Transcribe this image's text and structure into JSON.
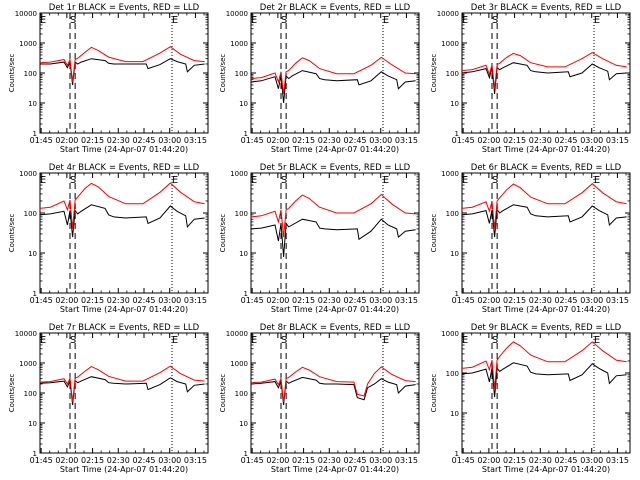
{
  "chart_data": {
    "type": "line",
    "xlabel": "Start Time (24-Apr-07 01:44:20)",
    "ylabel": "Counts/sec",
    "x_ticks": [
      "01:45",
      "02:00",
      "02:15",
      "02:30",
      "02:45",
      "03:00",
      "03:15"
    ],
    "x_tick_minutes": [
      0.67,
      15.67,
      30.67,
      45.67,
      60.67,
      75.67,
      90.67
    ],
    "x_range_minutes": [
      0,
      98
    ],
    "y_scale": "log",
    "y_ticks": [
      "1",
      "10",
      "100",
      "1000",
      "10000"
    ],
    "y_tick_values": [
      1,
      10,
      100,
      1000,
      10000
    ],
    "markers": [
      {
        "label": "E",
        "minute": 0,
        "style": "dotted"
      },
      {
        "label": "S",
        "minute": 17.5,
        "style": "dashed"
      },
      {
        "label": "",
        "minute": 20.5,
        "style": "dashed"
      },
      {
        "label": "E",
        "minute": 77,
        "style": "dotted"
      }
    ],
    "series_colors": {
      "events": "#000000",
      "lld": "#ff0000"
    },
    "panels": [
      {
        "title": "Det 1r BLACK = Events, RED = LLD",
        "ylim": [
          1,
          10000
        ],
        "series": [
          {
            "name": "Events",
            "x": [
              0,
              6,
              14,
              16,
              17.5,
              19,
              20.5,
              22,
              24,
              30,
              38,
              40,
              43,
              50,
              62,
              63,
              70,
              76,
              80,
              85,
              86,
              90,
              96
            ],
            "y": [
              200,
              200,
              230,
              150,
              230,
              40,
              230,
              200,
              230,
              300,
              260,
              210,
              200,
              200,
              200,
              140,
              190,
              300,
              240,
              200,
              110,
              180,
              200
            ]
          },
          {
            "name": "LLD",
            "x": [
              0,
              6,
              14,
              16,
              17.5,
              19,
              20.5,
              22,
              26,
              30,
              34,
              40,
              50,
              60,
              70,
              76,
              82,
              90,
              96
            ],
            "y": [
              220,
              230,
              280,
              180,
              280,
              50,
              280,
              310,
              480,
              720,
              560,
              340,
              240,
              240,
              460,
              750,
              420,
              260,
              240
            ]
          }
        ]
      },
      {
        "title": "Det 2r BLACK = Events, RED = LLD",
        "ylim": [
          1,
          10000
        ],
        "series": [
          {
            "name": "Events",
            "x": [
              0,
              6,
              14,
              16,
              17.5,
              19,
              20.5,
              22,
              24,
              30,
              38,
              40,
              43,
              50,
              62,
              63,
              70,
              76,
              80,
              85,
              86,
              90,
              96
            ],
            "y": [
              50,
              55,
              75,
              30,
              80,
              10,
              80,
              65,
              80,
              120,
              95,
              65,
              60,
              55,
              60,
              40,
              55,
              110,
              80,
              60,
              30,
              50,
              55
            ]
          },
          {
            "name": "LLD",
            "x": [
              0,
              6,
              14,
              16,
              17.5,
              19,
              20.5,
              22,
              26,
              30,
              34,
              40,
              50,
              60,
              70,
              76,
              82,
              90,
              96
            ],
            "y": [
              65,
              70,
              100,
              50,
              110,
              20,
              110,
              120,
              210,
              320,
              260,
              140,
              95,
              95,
              180,
              330,
              190,
              100,
              95
            ]
          }
        ]
      },
      {
        "title": "Det 3r BLACK = Events, RED = LLD",
        "ylim": [
          1,
          10000
        ],
        "series": [
          {
            "name": "Events",
            "x": [
              0,
              6,
              14,
              16,
              17.5,
              19,
              20.5,
              22,
              24,
              30,
              38,
              40,
              43,
              50,
              62,
              63,
              70,
              76,
              80,
              85,
              86,
              90,
              96
            ],
            "y": [
              100,
              110,
              140,
              70,
              150,
              20,
              150,
              130,
              150,
              220,
              180,
              120,
              110,
              100,
              110,
              75,
              100,
              200,
              150,
              115,
              60,
              95,
              100
            ]
          },
          {
            "name": "LLD",
            "x": [
              0,
              6,
              14,
              16,
              17.5,
              19,
              20.5,
              22,
              26,
              30,
              34,
              40,
              50,
              60,
              70,
              76,
              82,
              90,
              96
            ],
            "y": [
              120,
              130,
              180,
              90,
              190,
              30,
              190,
              210,
              330,
              450,
              380,
              220,
              160,
              160,
              300,
              480,
              300,
              180,
              160
            ]
          }
        ]
      },
      {
        "title": "Det 4r BLACK = Events, RED = LLD",
        "ylim": [
          1,
          1000
        ],
        "series": [
          {
            "name": "Events",
            "x": [
              0,
              6,
              14,
              16,
              17.5,
              19,
              20.5,
              22,
              24,
              30,
              38,
              40,
              43,
              50,
              62,
              63,
              70,
              76,
              80,
              85,
              86,
              90,
              96
            ],
            "y": [
              90,
              95,
              110,
              50,
              115,
              25,
              115,
              95,
              110,
              160,
              130,
              90,
              80,
              75,
              80,
              55,
              75,
              150,
              110,
              85,
              45,
              70,
              75
            ]
          },
          {
            "name": "LLD",
            "x": [
              0,
              6,
              14,
              16,
              17.5,
              19,
              20.5,
              22,
              26,
              30,
              34,
              40,
              50,
              60,
              70,
              76,
              82,
              90,
              96
            ],
            "y": [
              130,
              140,
              200,
              120,
              210,
              40,
              210,
              250,
              400,
              550,
              450,
              260,
              170,
              170,
              330,
              560,
              330,
              190,
              170
            ]
          }
        ]
      },
      {
        "title": "Det 5r BLACK = Events, RED = LLD",
        "ylim": [
          1,
          1000
        ],
        "series": [
          {
            "name": "Events",
            "x": [
              0,
              6,
              14,
              16,
              17.5,
              19,
              20.5,
              22,
              24,
              30,
              38,
              40,
              43,
              50,
              62,
              63,
              70,
              76,
              80,
              85,
              86,
              90,
              96
            ],
            "y": [
              40,
              42,
              50,
              20,
              55,
              8,
              55,
              45,
              50,
              70,
              60,
              42,
              40,
              38,
              40,
              22,
              35,
              70,
              50,
              40,
              25,
              35,
              38
            ]
          },
          {
            "name": "LLD",
            "x": [
              0,
              6,
              14,
              16,
              17.5,
              19,
              20.5,
              22,
              26,
              30,
              34,
              40,
              50,
              60,
              70,
              76,
              82,
              90,
              96
            ],
            "y": [
              80,
              85,
              110,
              60,
              120,
              25,
              120,
              130,
              200,
              280,
              230,
              140,
              100,
              100,
              170,
              290,
              170,
              100,
              95
            ]
          }
        ]
      },
      {
        "title": "Det 6r BLACK = Events, RED = LLD",
        "ylim": [
          1,
          1000
        ],
        "series": [
          {
            "name": "Events",
            "x": [
              0,
              6,
              14,
              16,
              17.5,
              19,
              20.5,
              22,
              24,
              30,
              38,
              40,
              43,
              50,
              62,
              63,
              70,
              76,
              80,
              85,
              86,
              90,
              96
            ],
            "y": [
              90,
              95,
              115,
              55,
              120,
              25,
              120,
              100,
              115,
              160,
              140,
              95,
              85,
              80,
              85,
              60,
              80,
              150,
              115,
              90,
              50,
              75,
              80
            ]
          },
          {
            "name": "LLD",
            "x": [
              0,
              6,
              14,
              16,
              17.5,
              19,
              20.5,
              22,
              26,
              30,
              34,
              40,
              50,
              60,
              70,
              76,
              82,
              90,
              96
            ],
            "y": [
              130,
              140,
              190,
              110,
              200,
              40,
              200,
              240,
              380,
              530,
              430,
              250,
              170,
              170,
              320,
              540,
              320,
              190,
              170
            ]
          }
        ]
      },
      {
        "title": "Det 7r BLACK = Events, RED = LLD",
        "ylim": [
          1,
          10000
        ],
        "series": [
          {
            "name": "Events",
            "x": [
              0,
              6,
              14,
              16,
              17.5,
              19,
              20.5,
              22,
              24,
              30,
              38,
              40,
              43,
              50,
              62,
              63,
              70,
              76,
              80,
              85,
              86,
              90,
              96
            ],
            "y": [
              210,
              220,
              250,
              160,
              260,
              40,
              260,
              220,
              250,
              350,
              280,
              220,
              210,
              200,
              210,
              130,
              190,
              320,
              240,
              200,
              110,
              180,
              200
            ]
          },
          {
            "name": "LLD",
            "x": [
              0,
              6,
              14,
              16,
              17.5,
              19,
              20.5,
              22,
              26,
              30,
              34,
              40,
              50,
              60,
              70,
              76,
              82,
              90,
              96
            ],
            "y": [
              230,
              240,
              300,
              200,
              310,
              50,
              310,
              340,
              520,
              760,
              600,
              360,
              250,
              250,
              480,
              780,
              440,
              270,
              250
            ]
          }
        ]
      },
      {
        "title": "Det 8r BLACK = Events, RED = LLD",
        "ylim": [
          1,
          10000
        ],
        "series": [
          {
            "name": "Events",
            "x": [
              0,
              6,
              14,
              16,
              17.5,
              19,
              20.5,
              22,
              24,
              30,
              38,
              40,
              43,
              50,
              60,
              62,
              66,
              68,
              72,
              76,
              80,
              85,
              86,
              90,
              96
            ],
            "y": [
              200,
              210,
              240,
              150,
              250,
              40,
              250,
              210,
              240,
              330,
              270,
              210,
              200,
              200,
              190,
              70,
              60,
              150,
              200,
              300,
              230,
              190,
              100,
              170,
              190
            ]
          },
          {
            "name": "LLD",
            "x": [
              0,
              6,
              14,
              16,
              17.5,
              19,
              20.5,
              22,
              26,
              30,
              34,
              40,
              50,
              60,
              62,
              66,
              68,
              72,
              76,
              82,
              90,
              96
            ],
            "y": [
              220,
              230,
              290,
              190,
              300,
              50,
              300,
              330,
              500,
              720,
              580,
              350,
              240,
              230,
              90,
              80,
              200,
              450,
              740,
              420,
              260,
              240
            ]
          }
        ]
      },
      {
        "title": "Det 9r BLACK = Events, RED = LLD",
        "ylim": [
          1,
          1000
        ],
        "series": [
          {
            "name": "Events",
            "x": [
              0,
              6,
              14,
              16,
              17.5,
              19,
              20.5,
              22,
              24,
              30,
              38,
              40,
              43,
              50,
              62,
              63,
              70,
              76,
              80,
              85,
              86,
              90,
              96
            ],
            "y": [
              95,
              100,
              125,
              60,
              130,
              25,
              130,
              110,
              125,
              180,
              150,
              105,
              95,
              90,
              95,
              65,
              90,
              170,
              130,
              100,
              55,
              85,
              90
            ]
          },
          {
            "name": "LLD",
            "x": [
              0,
              6,
              14,
              16,
              17.5,
              19,
              20.5,
              22,
              26,
              30,
              34,
              40,
              50,
              60,
              70,
              76,
              82,
              90,
              96
            ],
            "y": [
              130,
              140,
              200,
              120,
              210,
              40,
              210,
              260,
              420,
              600,
              480,
              280,
              190,
              190,
              360,
              600,
              360,
              210,
              190
            ]
          }
        ]
      }
    ]
  }
}
